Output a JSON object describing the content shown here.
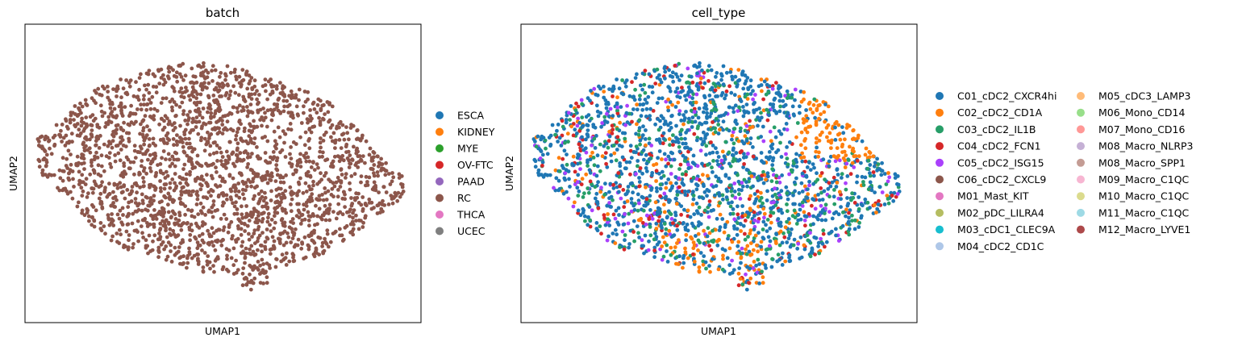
{
  "figure_title": "",
  "chart_data": [
    {
      "type": "scatter",
      "title": "batch",
      "xlabel": "UMAP1",
      "ylabel": "UMAP2",
      "grid": false,
      "ticks_shown": false,
      "legend_placement": "right outside",
      "point_count": 2300,
      "legend": [
        {
          "label": "ESCA",
          "color": "#1f77b4"
        },
        {
          "label": "KIDNEY",
          "color": "#ff7f0e"
        },
        {
          "label": "MYE",
          "color": "#2ca02c"
        },
        {
          "label": "OV-FTC",
          "color": "#d62728"
        },
        {
          "label": "PAAD",
          "color": "#9467bd"
        },
        {
          "label": "RC",
          "color": "#8c564b"
        },
        {
          "label": "THCA",
          "color": "#e377c2"
        },
        {
          "label": "UCEC",
          "color": "#7f7f7f"
        }
      ],
      "present_categories": [
        {
          "label": "RC",
          "weight": 1.0
        }
      ]
    },
    {
      "type": "scatter",
      "title": "cell_type",
      "xlabel": "UMAP1",
      "ylabel": "UMAP2",
      "grid": false,
      "ticks_shown": false,
      "legend_placement": "right outside, two columns",
      "point_count": 2300,
      "legend": [
        {
          "label": "C01_cDC2_CXCR4hi",
          "color": "#1f77b4"
        },
        {
          "label": "C02_cDC2_CD1A",
          "color": "#ff7f0e"
        },
        {
          "label": "C03_cDC2_IL1B",
          "color": "#279e68"
        },
        {
          "label": "C04_cDC2_FCN1",
          "color": "#d62728"
        },
        {
          "label": "C05_cDC2_ISG15",
          "color": "#aa40fc"
        },
        {
          "label": "C06_cDC2_CXCL9",
          "color": "#8c564b"
        },
        {
          "label": "M01_Mast_KIT",
          "color": "#e377c2"
        },
        {
          "label": "M02_pDC_LILRA4",
          "color": "#b5bd61"
        },
        {
          "label": "M03_cDC1_CLEC9A",
          "color": "#17becf"
        },
        {
          "label": "M04_cDC2_CD1C",
          "color": "#aec7e8"
        },
        {
          "label": "M05_cDC3_LAMP3",
          "color": "#ffbb78"
        },
        {
          "label": "M06_Mono_CD14",
          "color": "#98df8a"
        },
        {
          "label": "M07_Mono_CD16",
          "color": "#ff9896"
        },
        {
          "label": "M08_Macro_NLRP3",
          "color": "#c5b0d5"
        },
        {
          "label": "M08_Macro_SPP1",
          "color": "#c49c94"
        },
        {
          "label": "M09_Macro_C1QC",
          "color": "#f7b6d2"
        },
        {
          "label": "M10_Macro_C1QC",
          "color": "#dbdb8d"
        },
        {
          "label": "M11_Macro_C1QC",
          "color": "#9edae5"
        },
        {
          "label": "M12_Macro_LYVE1",
          "color": "#ad494a"
        }
      ],
      "present_categories": [
        {
          "label": "C01_cDC2_CXCR4hi",
          "weight": 0.58
        },
        {
          "label": "C03_cDC2_IL1B",
          "weight": 0.18
        },
        {
          "label": "C02_cDC2_CD1A",
          "weight": 0.09
        },
        {
          "label": "C05_cDC2_ISG15",
          "weight": 0.08
        },
        {
          "label": "C04_cDC2_FCN1",
          "weight": 0.07
        }
      ],
      "regional_enrichment": [
        {
          "label": "C02_cDC2_CD1A",
          "region": "upper-right cluster"
        },
        {
          "label": "C02_cDC2_CD1A",
          "region": "bottom edge"
        }
      ]
    }
  ]
}
